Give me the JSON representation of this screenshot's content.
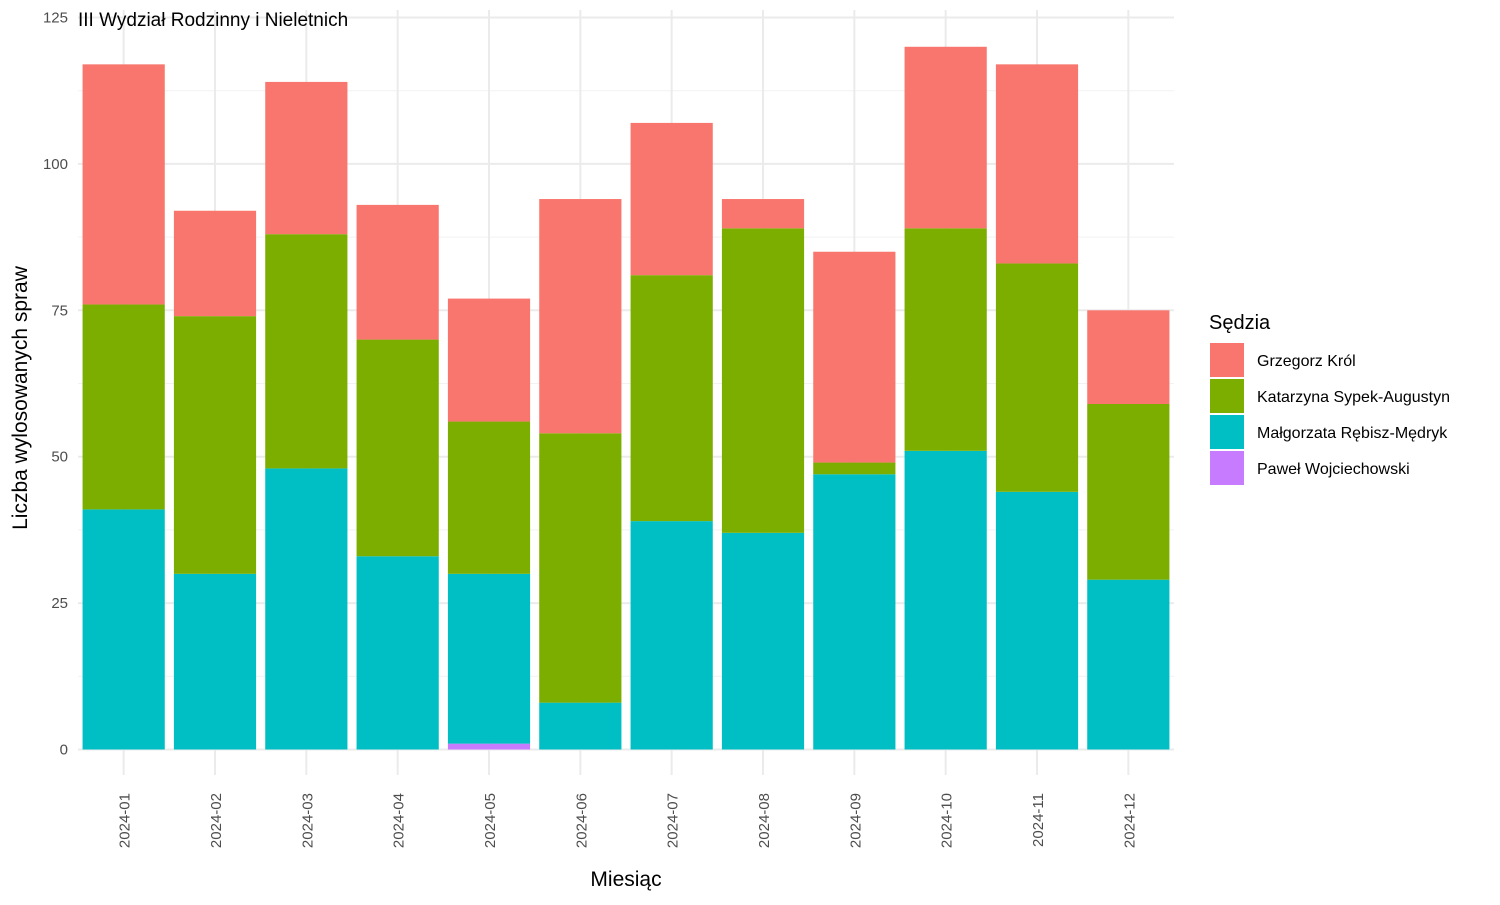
{
  "chart_data": {
    "type": "bar",
    "stacked": true,
    "title": "III Wydział Rodzinny i Nieletnich",
    "xlabel": "Miesiąc",
    "ylabel": "Liczba wylosowanych spraw",
    "ylim": [
      0,
      125
    ],
    "y_ticks": [
      0,
      25,
      50,
      75,
      100,
      125
    ],
    "grid": true,
    "legend_position": "right",
    "legend_title": "Sędzia",
    "categories": [
      "2024-01",
      "2024-02",
      "2024-03",
      "2024-04",
      "2024-05",
      "2024-06",
      "2024-07",
      "2024-08",
      "2024-09",
      "2024-10",
      "2024-11",
      "2024-12"
    ],
    "series": [
      {
        "name": "Grzegorz Król",
        "color": "#F8766D",
        "values": [
          41,
          18,
          26,
          23,
          21,
          40,
          26,
          5,
          36,
          31,
          34,
          16
        ]
      },
      {
        "name": "Katarzyna Sypek-Augustyn",
        "color": "#7CAE00",
        "values": [
          35,
          44,
          40,
          37,
          26,
          46,
          42,
          52,
          2,
          38,
          39,
          30
        ]
      },
      {
        "name": "Małgorzata Rębisz-Mędryk",
        "color": "#00BFC4",
        "values": [
          41,
          30,
          48,
          33,
          29,
          8,
          39,
          37,
          47,
          51,
          44,
          29
        ]
      },
      {
        "name": "Paweł Wojciechowski",
        "color": "#C77CFF",
        "values": [
          0,
          0,
          0,
          0,
          1,
          0,
          0,
          0,
          0,
          0,
          0,
          0
        ]
      }
    ]
  }
}
